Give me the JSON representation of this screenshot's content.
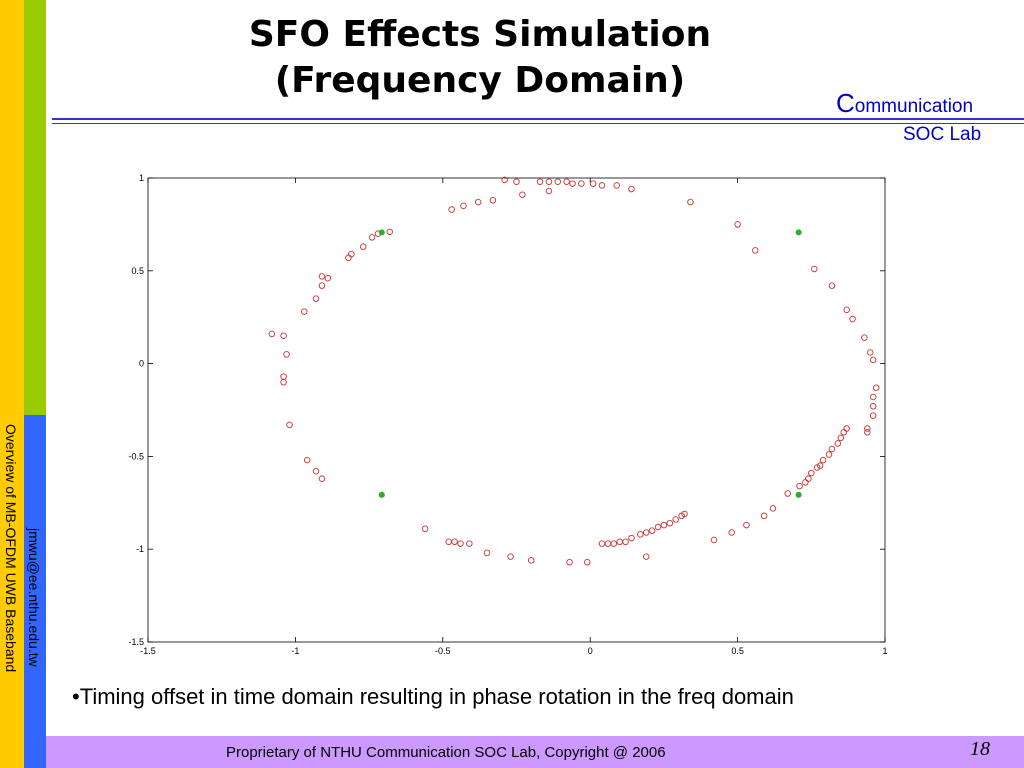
{
  "slide": {
    "title_line1": "SFO  Effects Simulation",
    "title_line2": "(Frequency Domain)",
    "side_text": "Overview of MB-OFDM UWB Baseband",
    "email": "jmwu@ee.nthu.edu.tw",
    "logo_c": "C",
    "logo_rest": "ommunication",
    "logo_line2": "SOC Lab",
    "bullet": "•Timing offset in time domain resulting in phase rotation in the freq domain",
    "footer": "Proprietary of NTHU Communication SOC Lab, Copyright @ 2006",
    "page_number": "18"
  },
  "colors": {
    "red_marker": "#cc3333",
    "green_marker": "#33aa33",
    "left_bar_yellow": "#ffcc00",
    "left_bar_green": "#99cc00",
    "left_bar_blue": "#3366ff",
    "footer_bar": "#cc99ff",
    "logo_blue": "#0000cc"
  },
  "chart_data": {
    "type": "scatter",
    "title": "",
    "xlabel": "",
    "ylabel": "",
    "xlim": [
      -1.5,
      1
    ],
    "ylim": [
      -1.5,
      1
    ],
    "xticks": [
      -1.5,
      -1,
      -0.5,
      0,
      0.5,
      1
    ],
    "yticks": [
      -1.5,
      -1,
      -0.5,
      0,
      0.5,
      1
    ],
    "xtick_labels": [
      "-1.5",
      "-1",
      "-0.5",
      "0",
      "0.5",
      "1"
    ],
    "ytick_labels": [
      "-1.5",
      "-1",
      "-0.5",
      "0",
      "0.5",
      "1"
    ],
    "grid": false,
    "series": [
      {
        "marker": "open-circle",
        "color": "#cc3333",
        "points": [
          [
            -0.29,
            0.99
          ],
          [
            -0.25,
            0.98
          ],
          [
            -0.17,
            0.98
          ],
          [
            -0.14,
            0.98
          ],
          [
            -0.11,
            0.98
          ],
          [
            -0.08,
            0.98
          ],
          [
            -0.06,
            0.97
          ],
          [
            -0.03,
            0.97
          ],
          [
            0.01,
            0.97
          ],
          [
            0.04,
            0.96
          ],
          [
            0.09,
            0.96
          ],
          [
            0.14,
            0.94
          ],
          [
            0.34,
            0.87
          ],
          [
            -0.14,
            0.93
          ],
          [
            -0.23,
            0.91
          ],
          [
            -0.33,
            0.88
          ],
          [
            -0.38,
            0.87
          ],
          [
            -0.43,
            0.85
          ],
          [
            -0.47,
            0.83
          ],
          [
            0.5,
            0.75
          ],
          [
            0.56,
            0.61
          ],
          [
            0.76,
            0.51
          ],
          [
            0.82,
            0.42
          ],
          [
            0.87,
            0.29
          ],
          [
            0.89,
            0.24
          ],
          [
            0.93,
            0.14
          ],
          [
            0.95,
            0.06
          ],
          [
            0.96,
            0.02
          ],
          [
            0.97,
            -0.13
          ],
          [
            0.96,
            -0.18
          ],
          [
            0.96,
            -0.23
          ],
          [
            0.96,
            -0.28
          ],
          [
            0.94,
            -0.35
          ],
          [
            0.94,
            -0.37
          ],
          [
            0.87,
            -0.35
          ],
          [
            0.86,
            -0.37
          ],
          [
            0.85,
            -0.4
          ],
          [
            0.84,
            -0.43
          ],
          [
            0.82,
            -0.46
          ],
          [
            0.81,
            -0.49
          ],
          [
            0.79,
            -0.52
          ],
          [
            0.78,
            -0.55
          ],
          [
            0.77,
            -0.56
          ],
          [
            0.75,
            -0.59
          ],
          [
            0.74,
            -0.62
          ],
          [
            0.73,
            -0.64
          ],
          [
            0.71,
            -0.66
          ],
          [
            0.67,
            -0.7
          ],
          [
            0.62,
            -0.78
          ],
          [
            0.59,
            -0.82
          ],
          [
            0.53,
            -0.87
          ],
          [
            0.48,
            -0.91
          ],
          [
            0.42,
            -0.95
          ],
          [
            0.32,
            -0.81
          ],
          [
            0.31,
            -0.82
          ],
          [
            0.29,
            -0.84
          ],
          [
            0.27,
            -0.86
          ],
          [
            0.25,
            -0.87
          ],
          [
            0.23,
            -0.88
          ],
          [
            0.21,
            -0.9
          ],
          [
            0.19,
            -0.91
          ],
          [
            0.17,
            -0.92
          ],
          [
            0.14,
            -0.94
          ],
          [
            0.12,
            -0.96
          ],
          [
            0.1,
            -0.96
          ],
          [
            0.08,
            -0.97
          ],
          [
            0.06,
            -0.97
          ],
          [
            0.04,
            -0.97
          ],
          [
            0.19,
            -1.04
          ],
          [
            -0.01,
            -1.07
          ],
          [
            -0.07,
            -1.07
          ],
          [
            -0.2,
            -1.06
          ],
          [
            -0.27,
            -1.04
          ],
          [
            -0.35,
            -1.02
          ],
          [
            -0.41,
            -0.97
          ],
          [
            -0.44,
            -0.97
          ],
          [
            -0.46,
            -0.96
          ],
          [
            -0.48,
            -0.96
          ],
          [
            -0.56,
            -0.89
          ],
          [
            -1.08,
            0.16
          ],
          [
            -1.04,
            0.15
          ],
          [
            -1.03,
            0.05
          ],
          [
            -1.04,
            -0.07
          ],
          [
            -1.04,
            -0.1
          ],
          [
            -1.02,
            -0.33
          ],
          [
            -0.96,
            -0.52
          ],
          [
            -0.93,
            -0.58
          ],
          [
            -0.91,
            -0.62
          ],
          [
            -0.97,
            0.28
          ],
          [
            -0.93,
            0.35
          ],
          [
            -0.91,
            0.42
          ],
          [
            -0.91,
            0.47
          ],
          [
            -0.89,
            0.46
          ],
          [
            -0.82,
            0.57
          ],
          [
            -0.81,
            0.59
          ],
          [
            -0.77,
            0.63
          ],
          [
            -0.74,
            0.68
          ],
          [
            -0.72,
            0.7
          ],
          [
            -0.68,
            0.71
          ]
        ]
      },
      {
        "marker": "filled-circle",
        "color": "#33aa33",
        "points": [
          [
            -0.707,
            0.707
          ],
          [
            0.707,
            0.707
          ],
          [
            -0.707,
            -0.707
          ],
          [
            0.707,
            -0.707
          ]
        ]
      }
    ]
  }
}
